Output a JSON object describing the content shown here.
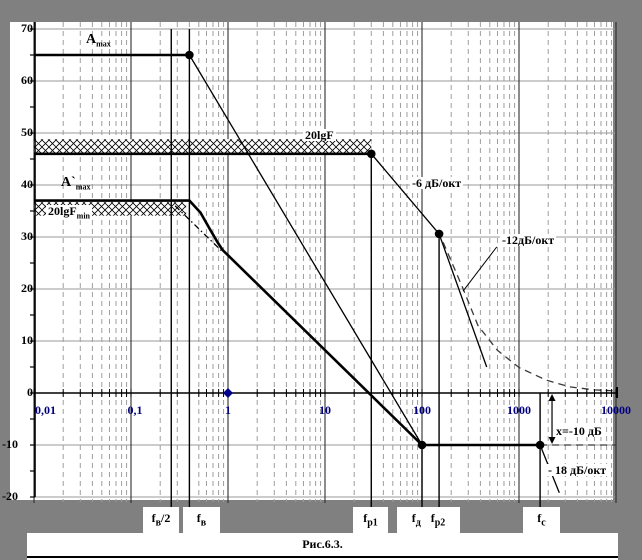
{
  "figure": {
    "caption": "Рис.6.3."
  },
  "colors": {
    "background": "#808080",
    "plot_background": "#ffffff",
    "axis": "#000000",
    "grid_major_h": "#999999",
    "grid_decade_v": "#2e2e2e",
    "grid_minor_v": "#9e9e9e",
    "marker_line": "#000000",
    "xtick_text": "#000080",
    "ytick_text": "#000000",
    "dashed_curve": "#3a3a3a",
    "blue_marker": "#00008b"
  },
  "labels": {
    "amax": {
      "main": "A",
      "sub": "max"
    },
    "amax_closed": {
      "main": "A`",
      "sub": "max"
    },
    "lgF": {
      "text": "20lgF"
    },
    "lgFmin": {
      "main": "20lgF",
      "sub": "min"
    },
    "slope6": {
      "text": "-6 дБ/окт"
    },
    "slope12": {
      "text": "-12дБ/окт"
    },
    "slope18": {
      "text": "- 18 дБ/окт"
    },
    "depth": {
      "text": "х=-10 дБ"
    },
    "freq": {
      "fv2": {
        "main": "f",
        "sub": "в",
        "suffix": "/2"
      },
      "fv": {
        "main": "f",
        "sub": "в",
        "suffix": ""
      },
      "fp1": {
        "main": "f",
        "sub": "р1",
        "suffix": ""
      },
      "fd": {
        "main": "f",
        "sub": "д",
        "suffix": ""
      },
      "fp2": {
        "main": "f",
        "sub": "р2",
        "suffix": ""
      },
      "fc": {
        "main": "f",
        "sub": "с",
        "suffix": ""
      }
    }
  },
  "chart_data": {
    "type": "line",
    "xscale": "log",
    "xlim": [
      0.01,
      10000
    ],
    "ylim": [
      -20,
      70
    ],
    "grid": "on",
    "xtick_labels": [
      "0,01",
      "0,1",
      "1",
      "10",
      "100",
      "1000",
      "10000"
    ],
    "ytick_labels": [
      "70",
      "60",
      "50",
      "40",
      "30",
      "20",
      "10",
      "0",
      "-10",
      "-20"
    ],
    "levels": {
      "Amax_dB": 65,
      "20lgF_dB": 46,
      "Amax_closed_dB": 37,
      "stopband_dB": -10
    },
    "breakpoints": {
      "fv": 0.4,
      "fp1": 30,
      "fd": 100,
      "fp2": 150,
      "fc": 1650
    },
    "series": [
      {
        "name": "open-loop-gain-max",
        "style": "thick",
        "points": [
          [
            0.01,
            65
          ],
          [
            0.4,
            65
          ]
        ]
      },
      {
        "name": "single-pole-rolloff",
        "style": "thin",
        "points": [
          [
            0.4,
            65
          ],
          [
            100,
            -10
          ]
        ]
      },
      {
        "name": "feedback-depth-20lgF",
        "style": "thick",
        "points": [
          [
            0.01,
            46
          ],
          [
            30,
            46
          ]
        ]
      },
      {
        "name": "rolloff-6db-oct",
        "style": "thin",
        "points": [
          [
            30,
            46
          ],
          [
            150,
            30.6
          ]
        ]
      },
      {
        "name": "rolloff-12db-oct",
        "style": "thin",
        "points": [
          [
            150,
            30.6
          ],
          [
            465,
            5
          ]
        ]
      },
      {
        "name": "closed-loop-gain",
        "style": "thick",
        "points": [
          [
            0.01,
            37
          ],
          [
            0.4,
            37
          ],
          [
            0.52,
            34.7
          ],
          [
            0.65,
            31.5
          ],
          [
            0.78,
            29
          ],
          [
            0.88,
            27.5
          ],
          [
            100,
            -10
          ]
        ]
      },
      {
        "name": "stopband-level",
        "style": "thick",
        "points": [
          [
            100,
            -10
          ],
          [
            1650,
            -10
          ]
        ]
      },
      {
        "name": "stopband-level-ext",
        "style": "dashed",
        "points": [
          [
            1650,
            -10
          ],
          [
            10000,
            -10
          ]
        ]
      },
      {
        "name": "rolloff-18db-oct",
        "style": "thin",
        "points": [
          [
            1650,
            -10
          ],
          [
            2600,
            -19.2
          ]
        ]
      },
      {
        "name": "real-response",
        "style": "dashed",
        "points": [
          [
            165,
            29
          ],
          [
            258,
            20.6
          ],
          [
            377,
            13
          ],
          [
            600,
            8.2
          ],
          [
            1000,
            4.9
          ],
          [
            1900,
            2.5
          ],
          [
            3300,
            1.2
          ],
          [
            6000,
            0.6
          ],
          [
            10000,
            0.4
          ]
        ]
      },
      {
        "name": "knee-asymptote",
        "style": "dashdot",
        "points": [
          [
            0.285,
            36
          ],
          [
            0.85,
            27.4
          ]
        ]
      }
    ],
    "dots": [
      [
        0.4,
        65
      ],
      [
        30,
        46
      ],
      [
        150,
        30.6
      ],
      [
        100,
        -10
      ],
      [
        1650,
        -10
      ]
    ],
    "blue_point": [
      1,
      0
    ],
    "vlines": [
      {
        "id": "fv2",
        "f": 0.26,
        "from_db": 70
      },
      {
        "id": "fv",
        "f": 0.4,
        "from_db": 70
      },
      {
        "id": "fp1",
        "f": 30,
        "from_db": 46
      },
      {
        "id": "fd",
        "f": 100,
        "from_db": -10
      },
      {
        "id": "fp2",
        "f": 150,
        "from_db": 30.6
      },
      {
        "id": "fc",
        "f": 1650,
        "from_db": 0
      }
    ],
    "hatch_bands": [
      {
        "f1": 0.01,
        "f2": 30,
        "db_top": 48.8,
        "db_bottom": 46.2
      },
      {
        "f1": 0.01,
        "f2": 0.37,
        "db_top": 36.7,
        "db_bottom": 34.1
      }
    ],
    "depth_arrow": {
      "f": 2190,
      "db_top": 0,
      "db_bottom": -10
    },
    "pointer_line": {
      "from": [
        590,
        28.1
      ],
      "to": [
        265,
        19.6
      ]
    }
  }
}
